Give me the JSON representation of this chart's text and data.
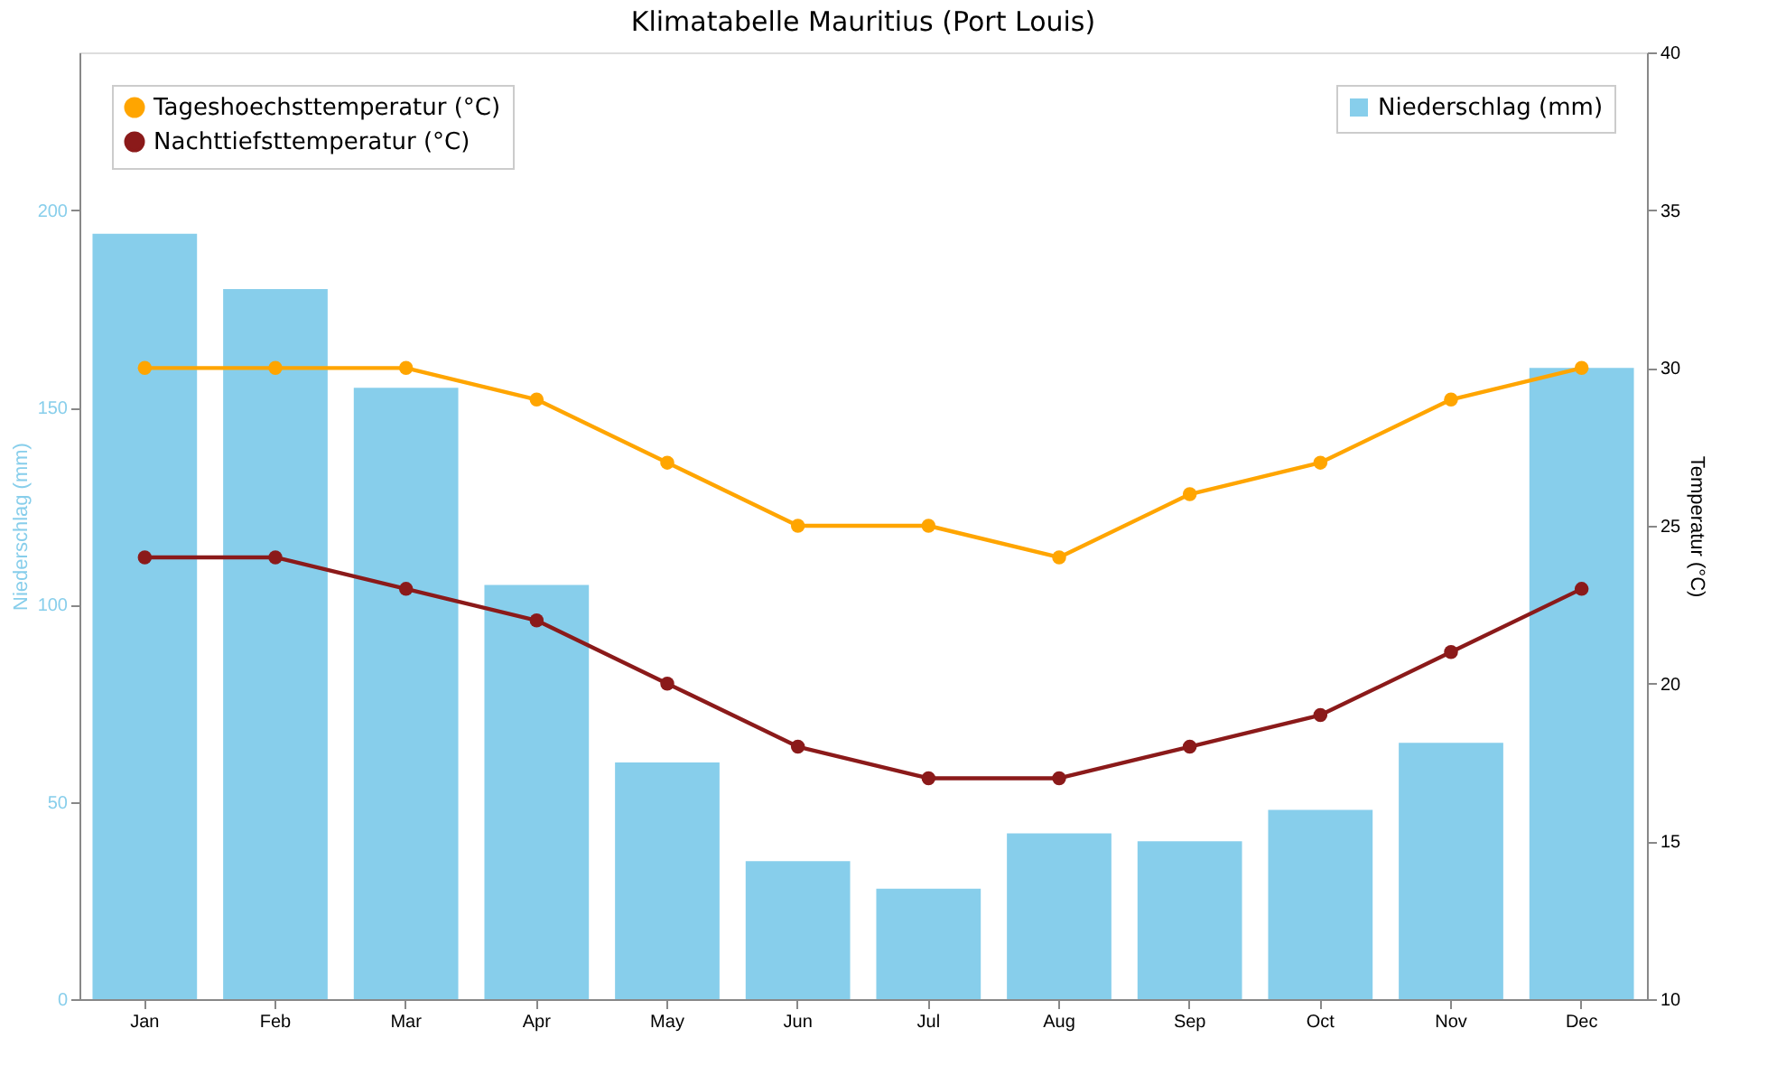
{
  "chart_data": {
    "type": "bar",
    "title": "Klimatabelle Mauritius (Port Louis)",
    "ylabel": "Niederschlag (mm)",
    "y2label": "Temperatur (°C)",
    "categories": [
      "Jan",
      "Feb",
      "Mar",
      "Apr",
      "May",
      "Jun",
      "Jul",
      "Aug",
      "Sep",
      "Oct",
      "Nov",
      "Dec"
    ],
    "series": [
      {
        "name": "Niederschlag (mm)",
        "color": "#87ceeb",
        "values": [
          194,
          180,
          155,
          105,
          60,
          35,
          28,
          42,
          40,
          48,
          65,
          160
        ]
      },
      {
        "name": "Tageshoechsttemperatur (°C)",
        "type": "line",
        "axis": "y2",
        "color": "#ffa500",
        "values": [
          30,
          30,
          30,
          29,
          27,
          25,
          25,
          24,
          26,
          27,
          29,
          30
        ]
      },
      {
        "name": "Nachttiefsttemperatur (°C)",
        "type": "line",
        "axis": "y2",
        "color": "#8b1a1a",
        "values": [
          24,
          24,
          23,
          22,
          20,
          18,
          17,
          17,
          18,
          19,
          21,
          23
        ]
      }
    ],
    "ylim": [
      0,
      240
    ],
    "yticks": [
      0,
      50,
      100,
      150,
      200
    ],
    "y2lim": [
      10,
      40
    ],
    "y2ticks": [
      10,
      15,
      20,
      25,
      30,
      35,
      40
    ],
    "grid": false,
    "legend": "top left",
    "marker": "circle",
    "line_style": "solid"
  }
}
